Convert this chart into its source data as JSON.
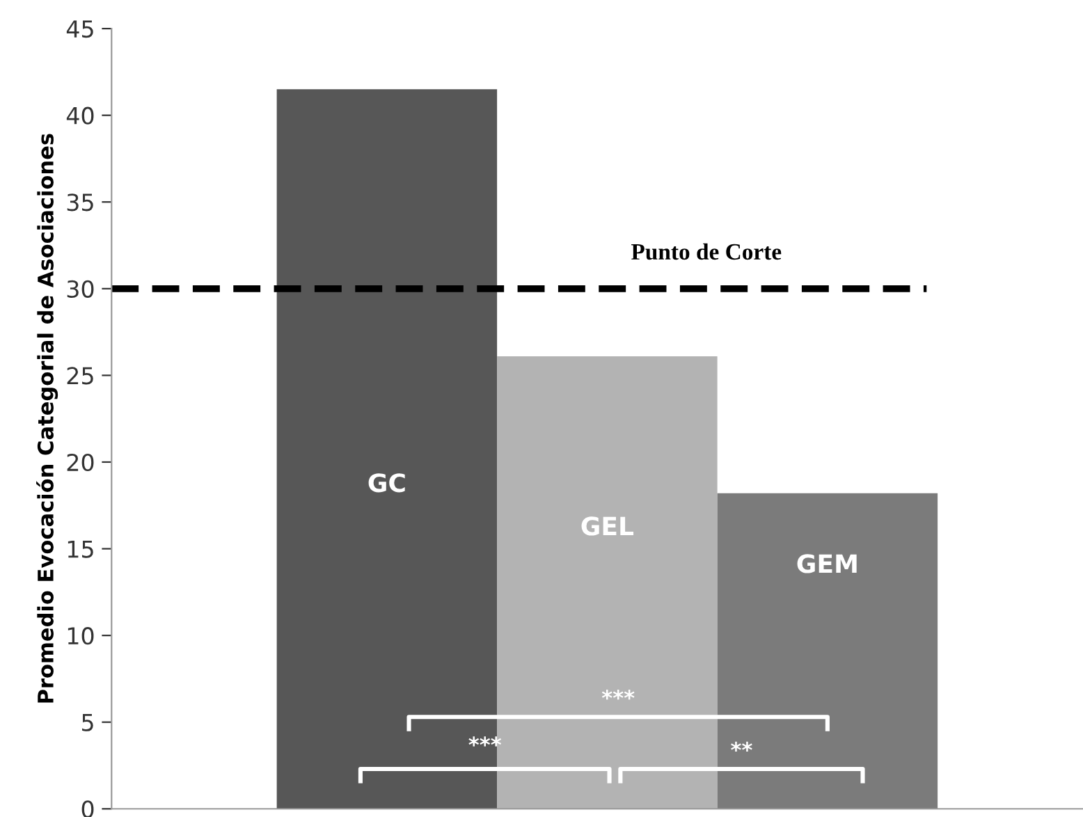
{
  "chart_data": {
    "type": "bar",
    "ylabel": "Promedio Evocación Categorial de Asociaciones",
    "categories": [
      "GC",
      "GEL",
      "GEM"
    ],
    "values": [
      41.5,
      26.1,
      18.2
    ],
    "colors": [
      "#575757",
      "#b3b3b3",
      "#7b7b7b"
    ],
    "ylim": [
      0,
      45
    ],
    "yticks": [
      0,
      5,
      10,
      15,
      20,
      25,
      30,
      35,
      40,
      45
    ],
    "ref_lines": [
      {
        "axis": "y",
        "value": 30,
        "label": "Punto de Corte",
        "color": "#000000",
        "line_style": "dashed"
      }
    ],
    "annotations": [
      "***",
      "***",
      "**"
    ],
    "grid": false,
    "tick_labels": "y"
  }
}
